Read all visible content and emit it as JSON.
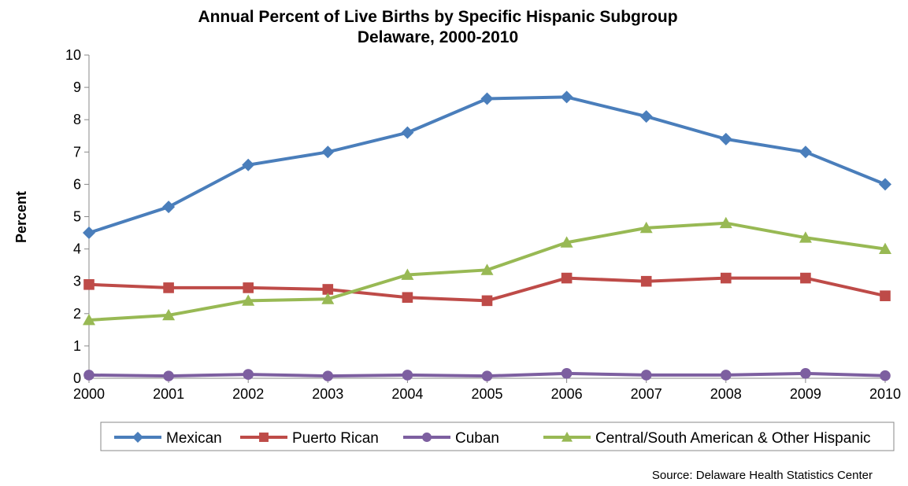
{
  "chart_data": {
    "type": "line",
    "title": "Annual Percent of Live Births by Specific Hispanic Subgroup",
    "subtitle": "Delaware, 2000-2010",
    "xlabel": "",
    "ylabel": "Percent",
    "categories": [
      "2000",
      "2001",
      "2002",
      "2003",
      "2004",
      "2005",
      "2006",
      "2007",
      "2008",
      "2009",
      "2010"
    ],
    "ylim": [
      0,
      10
    ],
    "yticks": [
      "0",
      "1",
      "2",
      "3",
      "4",
      "5",
      "6",
      "7",
      "8",
      "9",
      "10"
    ],
    "grid": false,
    "legend_position": "bottom",
    "series": [
      {
        "name": "Mexican",
        "color": "#4A7EBB",
        "marker": "diamond",
        "values": [
          4.5,
          5.3,
          6.6,
          7.0,
          7.6,
          8.65,
          8.7,
          8.1,
          7.4,
          7.0,
          6.0
        ]
      },
      {
        "name": "Puerto Rican",
        "color": "#BE4B48",
        "marker": "square",
        "values": [
          2.9,
          2.8,
          2.8,
          2.75,
          2.5,
          2.4,
          3.1,
          3.0,
          3.1,
          3.1,
          2.55
        ]
      },
      {
        "name": "Cuban",
        "color": "#7D5FA0",
        "marker": "circle",
        "values": [
          0.1,
          0.07,
          0.12,
          0.07,
          0.1,
          0.07,
          0.15,
          0.1,
          0.1,
          0.15,
          0.08
        ]
      },
      {
        "name": "Central/South American & Other Hispanic",
        "color": "#98B954",
        "marker": "triangle",
        "values": [
          1.8,
          1.95,
          2.4,
          2.45,
          3.2,
          3.35,
          4.2,
          4.65,
          4.8,
          4.35,
          4.0
        ]
      }
    ],
    "source": "Source: Delaware Health Statistics Center"
  }
}
